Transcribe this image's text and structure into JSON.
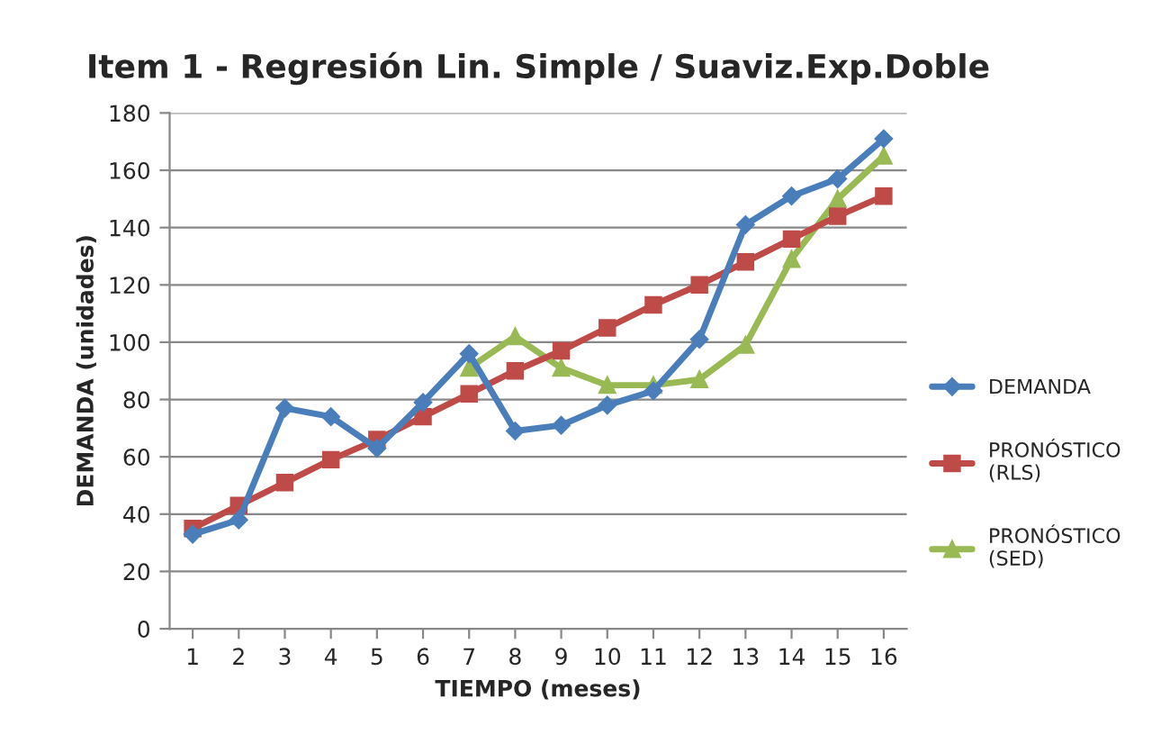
{
  "chart_data": {
    "type": "line",
    "title": "Item 1 - Regresión Lin. Simple / Suaviz.Exp.Doble",
    "xlabel": "TIEMPO (meses)",
    "ylabel": "DEMANDA (unidades)",
    "categories": [
      "1",
      "2",
      "3",
      "4",
      "5",
      "6",
      "7",
      "8",
      "9",
      "10",
      "11",
      "12",
      "13",
      "14",
      "15",
      "16"
    ],
    "series": [
      {
        "name": "DEMANDA",
        "color": "#4a7ebb",
        "marker": "diamond",
        "values": [
          33,
          38,
          77,
          74,
          63,
          79,
          96,
          69,
          71,
          78,
          83,
          101,
          141,
          151,
          157,
          171
        ]
      },
      {
        "name": "PRONÓSTICO (RLS)",
        "color": "#be4b48",
        "marker": "square",
        "values": [
          35,
          43,
          51,
          59,
          66,
          74,
          82,
          90,
          97,
          105,
          113,
          120,
          128,
          136,
          144,
          151
        ]
      },
      {
        "name": "PRONÓSTICO (SED)",
        "color": "#98b954",
        "marker": "triangle",
        "values": [
          null,
          null,
          null,
          null,
          null,
          null,
          91,
          102,
          91,
          85,
          85,
          87,
          99,
          129,
          150,
          165
        ]
      }
    ],
    "ylim": [
      0,
      180
    ],
    "yticks": [
      0,
      20,
      40,
      60,
      80,
      100,
      120,
      140,
      160,
      180
    ],
    "grid": "y",
    "legend": "right"
  }
}
